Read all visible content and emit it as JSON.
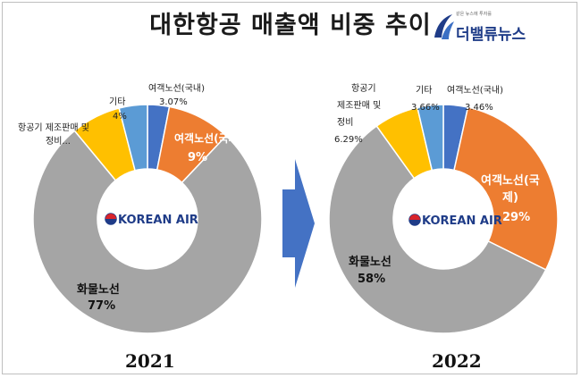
{
  "title": "대한항공 매출액 비중 추이",
  "logo": {
    "text": "더밸류뉴스",
    "tagline": "같은 뉴스에 투자를"
  },
  "brand_label": "KOREAN AIR",
  "colors": {
    "domestic": "#4472c4",
    "international": "#ed7d31",
    "cargo": "#a5a5a5",
    "aircraft": "#ffc000",
    "other": "#5b9bd5",
    "arrow": "#4472c4"
  },
  "chart_data": [
    {
      "type": "pie",
      "year": "2021",
      "series": [
        {
          "name": "여객노선(국내)",
          "value": 3.07,
          "label": "3.07%"
        },
        {
          "name": "여객노선(국제)",
          "value": 9,
          "label": "9%"
        },
        {
          "name": "화물노선",
          "value": 77,
          "label": "77%"
        },
        {
          "name": "항공기 제조판매 및 정비...",
          "value": 7,
          "label": ""
        },
        {
          "name": "기타",
          "value": 4,
          "label": "4%"
        }
      ]
    },
    {
      "type": "pie",
      "year": "2022",
      "series": [
        {
          "name": "여객노선(국내)",
          "value": 3.46,
          "label": "3.46%"
        },
        {
          "name": "여객노선(국제)",
          "value": 29,
          "label": "29%"
        },
        {
          "name": "화물노선",
          "value": 58,
          "label": "58%"
        },
        {
          "name": "항공기 제조판매 및 정비",
          "value": 6.29,
          "label": "6.29%"
        },
        {
          "name": "기타",
          "value": 3.66,
          "label": "3.66%"
        }
      ]
    }
  ]
}
